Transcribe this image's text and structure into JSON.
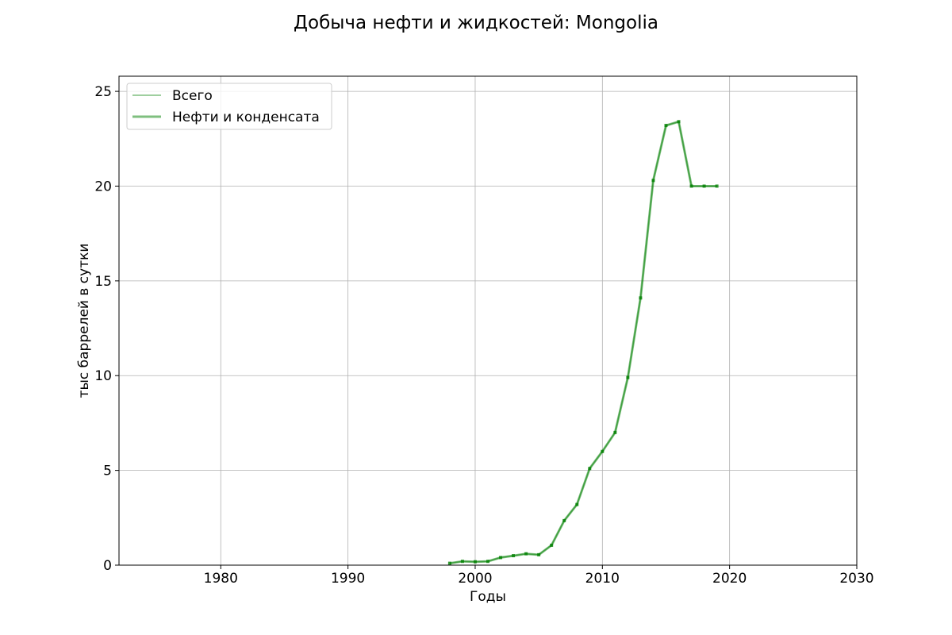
{
  "chart_data": {
    "type": "line",
    "title": "Добыча нефти и жидкостей: Mongolia",
    "xlabel": "Годы",
    "ylabel": "тыс баррелей в сутки",
    "xlim": [
      1972,
      2030
    ],
    "ylim": [
      0,
      25.8
    ],
    "xticks": [
      1980,
      1990,
      2000,
      2010,
      2020,
      2030
    ],
    "yticks": [
      0,
      5,
      10,
      15,
      20,
      25
    ],
    "grid": true,
    "legend": {
      "position": "top-left",
      "entries": [
        "Всего",
        "Нефти и конденсата"
      ]
    },
    "series": [
      {
        "name": "Всего",
        "color": "#008000",
        "opacity": 0.5,
        "line_style": "thin",
        "x": [
          1998,
          1999,
          2000,
          2001,
          2002,
          2003,
          2004,
          2005,
          2006,
          2007,
          2008,
          2009,
          2010,
          2011,
          2012,
          2013,
          2014,
          2015,
          2016,
          2017,
          2018,
          2019
        ],
        "values": [
          0.1,
          0.2,
          0.18,
          0.2,
          0.4,
          0.5,
          0.6,
          0.55,
          1.05,
          2.35,
          3.2,
          5.1,
          6.0,
          7.0,
          9.9,
          14.1,
          20.3,
          23.2,
          23.4,
          20.0,
          20.0,
          20.0
        ]
      },
      {
        "name": "Нефти и конденсата",
        "color": "#008000",
        "opacity": 0.5,
        "line_style": "thick",
        "markers": true,
        "x": [
          1998,
          1999,
          2000,
          2001,
          2002,
          2003,
          2004,
          2005,
          2006,
          2007,
          2008,
          2009,
          2010,
          2011,
          2012,
          2013,
          2014,
          2015,
          2016,
          2017,
          2018,
          2019
        ],
        "values": [
          0.1,
          0.2,
          0.18,
          0.2,
          0.4,
          0.5,
          0.6,
          0.55,
          1.05,
          2.35,
          3.2,
          5.1,
          6.0,
          7.0,
          9.9,
          14.1,
          20.3,
          23.2,
          23.4,
          20.0,
          20.0,
          20.0
        ]
      }
    ]
  }
}
